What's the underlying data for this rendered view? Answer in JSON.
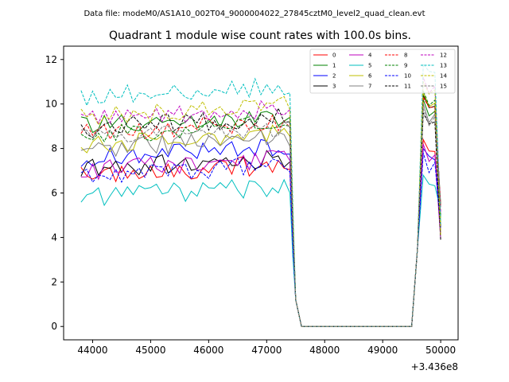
{
  "figure": {
    "suptitle": "Data file: modeM0/AS1A10_002T04_9000004022_27845cztM0_level2_quad_clean.evt"
  },
  "chart_data": {
    "type": "line",
    "title": "Quadrant 1 module wise count rates with 100.0s bins.",
    "xlabel": "",
    "ylabel": "",
    "x_offset_label": "+3.436e8",
    "xlim": [
      43500,
      50300
    ],
    "ylim": [
      -0.6,
      12.6
    ],
    "x_ticks": [
      44000,
      45000,
      46000,
      47000,
      48000,
      49000,
      50000
    ],
    "x_tick_labels": [
      "44000",
      "45000",
      "46000",
      "47000",
      "48000",
      "49000",
      "50000"
    ],
    "y_ticks": [
      0,
      2,
      4,
      6,
      8,
      10,
      12
    ],
    "y_tick_labels": [
      "0",
      "2",
      "4",
      "6",
      "8",
      "10",
      "12"
    ],
    "grid": false,
    "legend_position": "top-right",
    "legend_columns": 4,
    "segment_a_start": 43800,
    "segment_a_end": 47400,
    "segment_b_start": 49500,
    "segment_b_end": 50000,
    "bin_width": 100,
    "series": [
      {
        "name": "0",
        "color": "#ff0000",
        "dash": "solid",
        "base": 6.8
      },
      {
        "name": "1",
        "color": "#008000",
        "dash": "solid",
        "base": 9.0
      },
      {
        "name": "2",
        "color": "#0000ff",
        "dash": "solid",
        "base": 7.6
      },
      {
        "name": "3",
        "color": "#000000",
        "dash": "solid",
        "base": 7.1
      },
      {
        "name": "4",
        "color": "#bf00bf",
        "dash": "solid",
        "base": 7.0
      },
      {
        "name": "5",
        "color": "#00bfbf",
        "dash": "solid",
        "base": 5.8
      },
      {
        "name": "6",
        "color": "#bfbf00",
        "dash": "solid",
        "base": 8.2
      },
      {
        "name": "7",
        "color": "#808080",
        "dash": "solid",
        "base": 8.0
      },
      {
        "name": "8",
        "color": "#ff0000",
        "dash": "dashed",
        "base": 8.7
      },
      {
        "name": "9",
        "color": "#008000",
        "dash": "dashed",
        "base": 8.6
      },
      {
        "name": "10",
        "color": "#0000ff",
        "dash": "dashed",
        "base": 6.8
      },
      {
        "name": "11",
        "color": "#000000",
        "dash": "dashed",
        "base": 8.9
      },
      {
        "name": "12",
        "color": "#bf00bf",
        "dash": "dashed",
        "base": 9.3
      },
      {
        "name": "13",
        "color": "#00bfbf",
        "dash": "dashed",
        "base": 10.3
      },
      {
        "name": "14",
        "color": "#bfbf00",
        "dash": "dashed",
        "base": 9.4
      },
      {
        "name": "15",
        "color": "#808080",
        "dash": "dashed",
        "base": 8.4
      }
    ]
  }
}
